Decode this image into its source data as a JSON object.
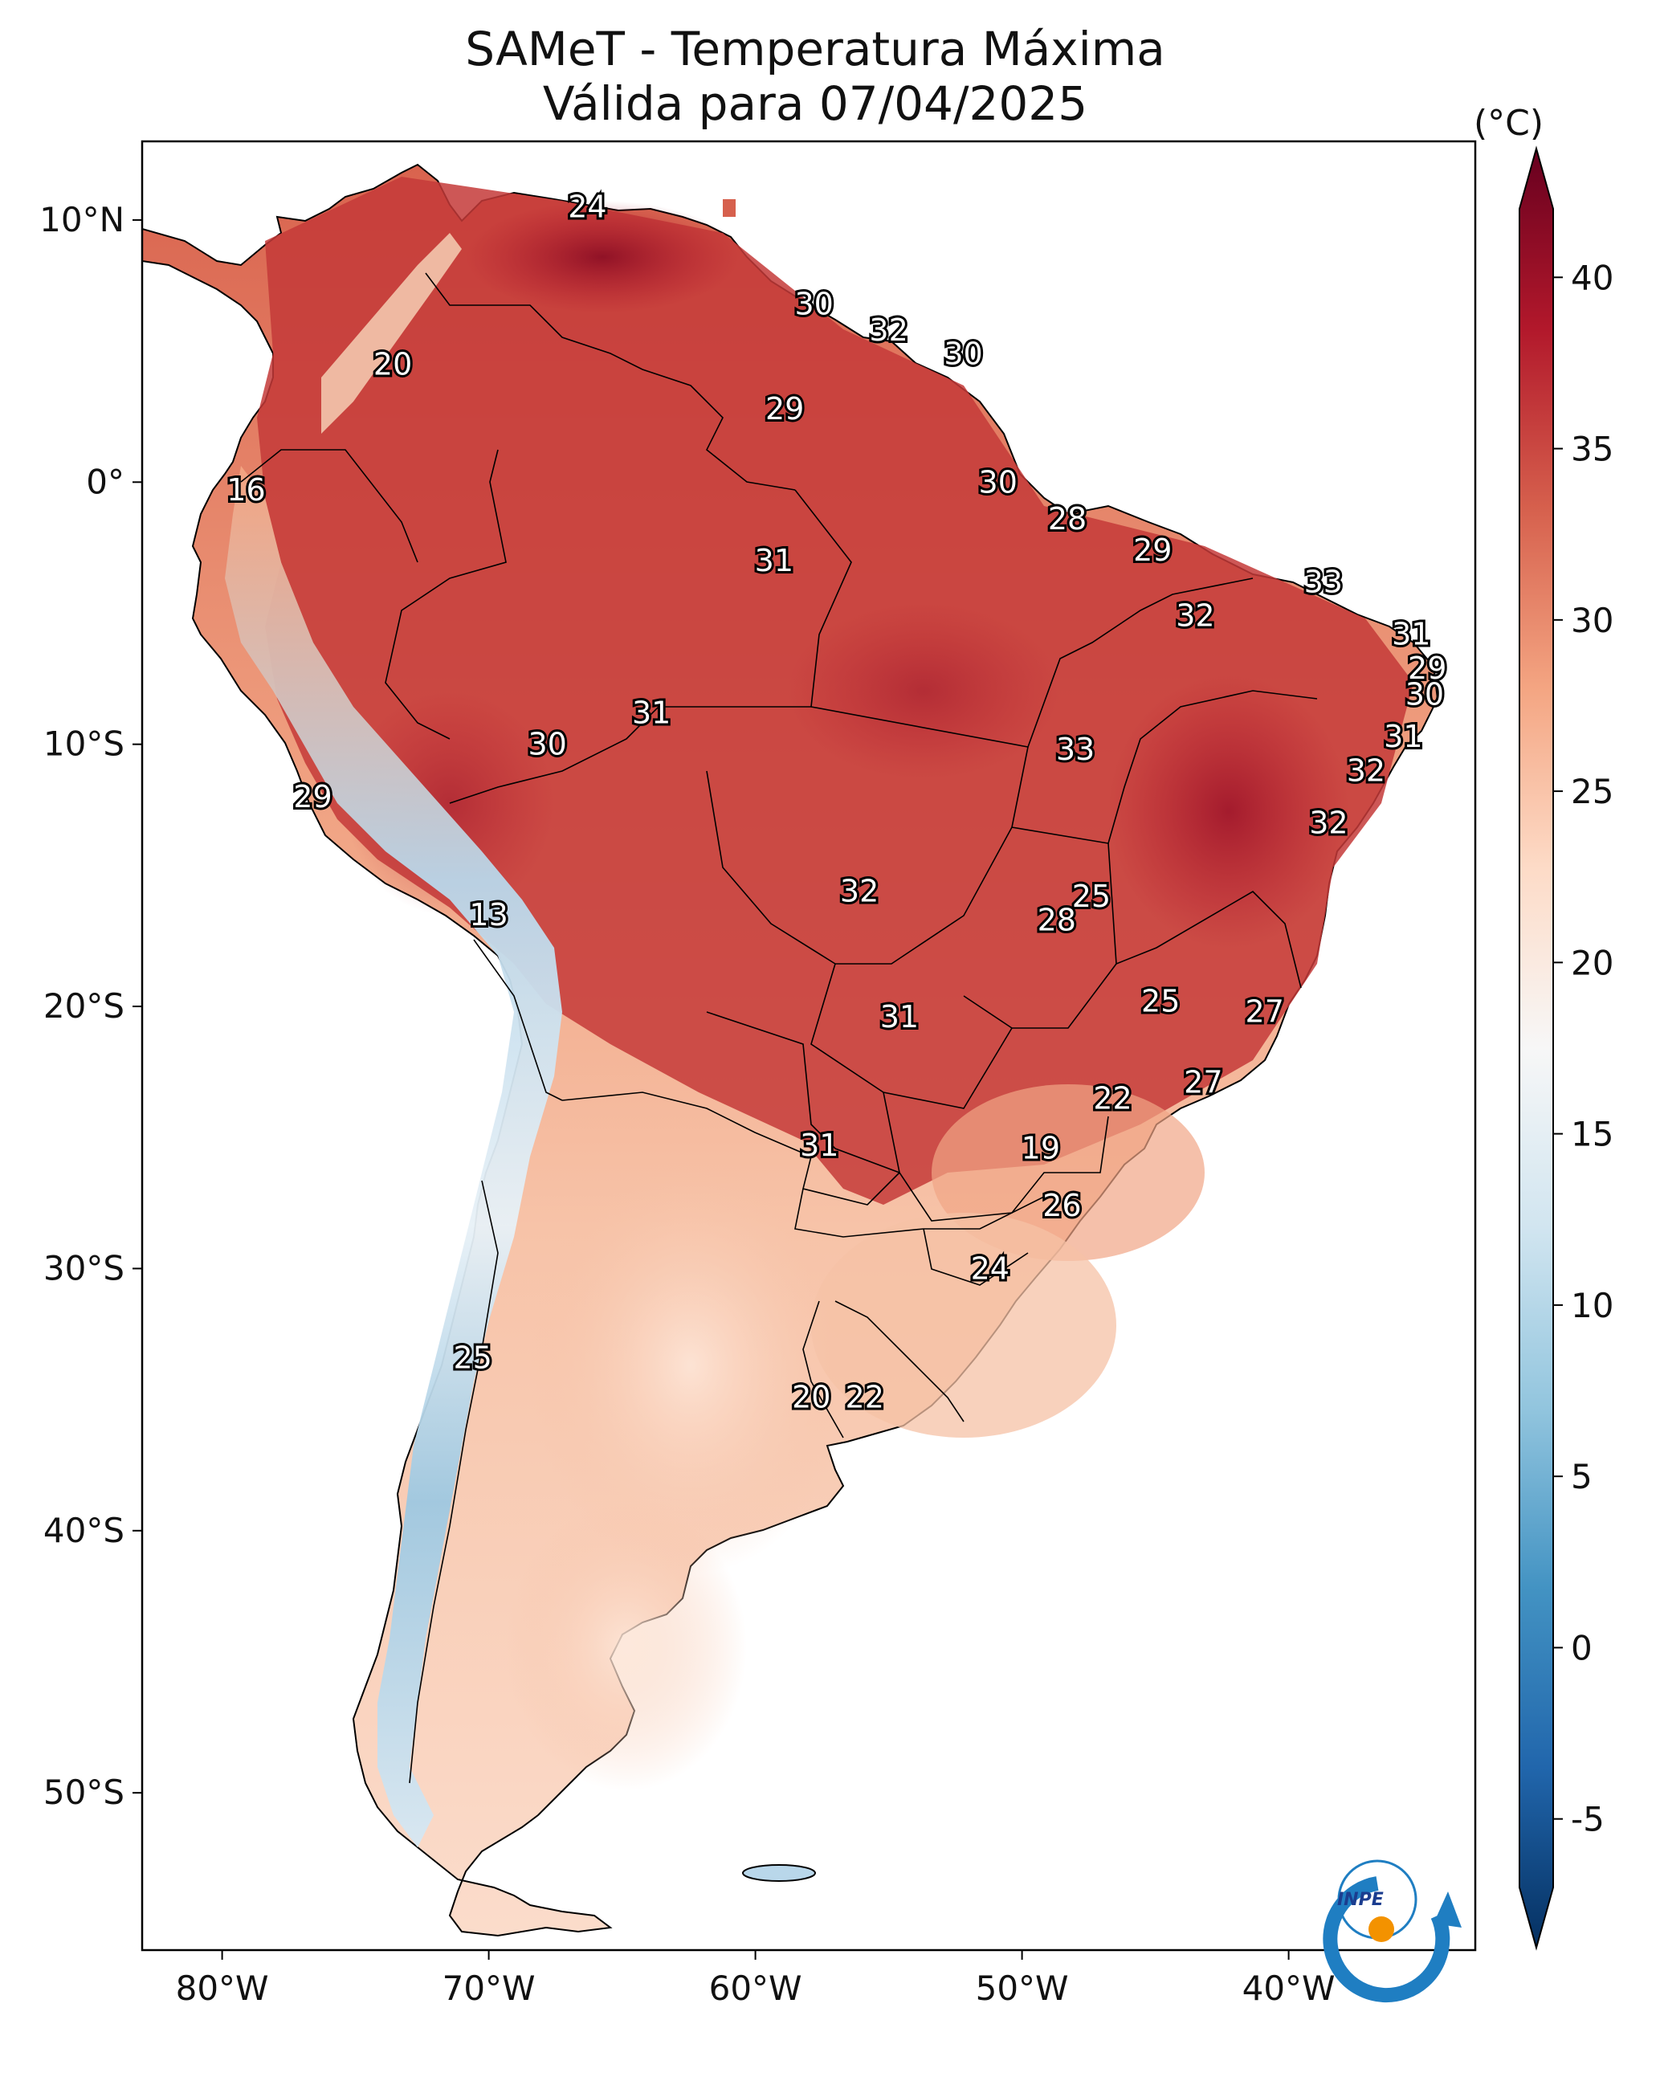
{
  "title": {
    "line1": "SAMeT - Temperatura Máxima",
    "line2": "Válida para 07/04/2025"
  },
  "colorbar": {
    "unit": "(°C)",
    "min": -7,
    "max": 42,
    "ticks": [
      {
        "value": 40,
        "label": "40"
      },
      {
        "value": 35,
        "label": "35"
      },
      {
        "value": 30,
        "label": "30"
      },
      {
        "value": 25,
        "label": "25"
      },
      {
        "value": 20,
        "label": "20"
      },
      {
        "value": 15,
        "label": "15"
      },
      {
        "value": 10,
        "label": "10"
      },
      {
        "value": 5,
        "label": "5"
      },
      {
        "value": 0,
        "label": "0"
      },
      {
        "value": -5,
        "label": "-5"
      }
    ],
    "colors": [
      "#053061",
      "#2166ac",
      "#4393c3",
      "#92c5de",
      "#d1e5f0",
      "#f7f7f7",
      "#fddbc7",
      "#f4a582",
      "#d6604d",
      "#b2182b",
      "#67001f"
    ]
  },
  "axes": {
    "lon_range": [
      -83,
      -33
    ],
    "lat_range": [
      -56,
      13
    ],
    "lon_ticks": [
      {
        "value": -80,
        "label": "80°W"
      },
      {
        "value": -70,
        "label": "70°W"
      },
      {
        "value": -60,
        "label": "60°W"
      },
      {
        "value": -50,
        "label": "50°W"
      },
      {
        "value": -40,
        "label": "40°W"
      }
    ],
    "lat_ticks": [
      {
        "value": 10,
        "label": "10°N"
      },
      {
        "value": 0,
        "label": "0°"
      },
      {
        "value": -10,
        "label": "10°S"
      },
      {
        "value": -20,
        "label": "20°S"
      },
      {
        "value": -30,
        "label": "30°S"
      },
      {
        "value": -40,
        "label": "40°S"
      },
      {
        "value": -50,
        "label": "50°S"
      }
    ]
  },
  "station_labels": [
    {
      "lon": -66.3,
      "lat": 10.5,
      "text": "24"
    },
    {
      "lon": -73.6,
      "lat": 4.5,
      "text": "20"
    },
    {
      "lon": -79.1,
      "lat": -0.3,
      "text": "16"
    },
    {
      "lon": -57.8,
      "lat": 6.8,
      "text": "30"
    },
    {
      "lon": -55.0,
      "lat": 5.8,
      "text": "32"
    },
    {
      "lon": -52.2,
      "lat": 4.9,
      "text": "30"
    },
    {
      "lon": -58.9,
      "lat": 2.8,
      "text": "29"
    },
    {
      "lon": -50.9,
      "lat": 0.0,
      "text": "30"
    },
    {
      "lon": -48.3,
      "lat": -1.4,
      "text": "28"
    },
    {
      "lon": -59.3,
      "lat": -3.0,
      "text": "31"
    },
    {
      "lon": -45.1,
      "lat": -2.6,
      "text": "29"
    },
    {
      "lon": -38.7,
      "lat": -3.8,
      "text": "33"
    },
    {
      "lon": -43.5,
      "lat": -5.1,
      "text": "32"
    },
    {
      "lon": -35.4,
      "lat": -5.8,
      "text": "31"
    },
    {
      "lon": -34.8,
      "lat": -7.1,
      "text": "29"
    },
    {
      "lon": -34.9,
      "lat": -8.1,
      "text": "30"
    },
    {
      "lon": -63.9,
      "lat": -8.8,
      "text": "31"
    },
    {
      "lon": -67.8,
      "lat": -10.0,
      "text": "30"
    },
    {
      "lon": -35.7,
      "lat": -9.7,
      "text": "31"
    },
    {
      "lon": -48.0,
      "lat": -10.2,
      "text": "33"
    },
    {
      "lon": -37.1,
      "lat": -11.0,
      "text": "32"
    },
    {
      "lon": -76.6,
      "lat": -12.0,
      "text": "29"
    },
    {
      "lon": -38.5,
      "lat": -13.0,
      "text": "32"
    },
    {
      "lon": -70.0,
      "lat": -16.5,
      "text": "13"
    },
    {
      "lon": -56.1,
      "lat": -15.6,
      "text": "32"
    },
    {
      "lon": -47.4,
      "lat": -15.8,
      "text": "25"
    },
    {
      "lon": -48.7,
      "lat": -16.7,
      "text": "28"
    },
    {
      "lon": -44.8,
      "lat": -19.8,
      "text": "25"
    },
    {
      "lon": -40.9,
      "lat": -20.2,
      "text": "27"
    },
    {
      "lon": -54.6,
      "lat": -20.4,
      "text": "31"
    },
    {
      "lon": -43.2,
      "lat": -22.9,
      "text": "27"
    },
    {
      "lon": -46.6,
      "lat": -23.5,
      "text": "22"
    },
    {
      "lon": -57.6,
      "lat": -25.3,
      "text": "31"
    },
    {
      "lon": -49.3,
      "lat": -25.4,
      "text": "19"
    },
    {
      "lon": -48.5,
      "lat": -27.6,
      "text": "26"
    },
    {
      "lon": -51.2,
      "lat": -30.0,
      "text": "24"
    },
    {
      "lon": -70.6,
      "lat": -33.4,
      "text": "25"
    },
    {
      "lon": -57.9,
      "lat": -34.9,
      "text": "20"
    },
    {
      "lon": -55.9,
      "lat": -34.9,
      "text": "22"
    }
  ],
  "logo": {
    "text": "INPE"
  }
}
